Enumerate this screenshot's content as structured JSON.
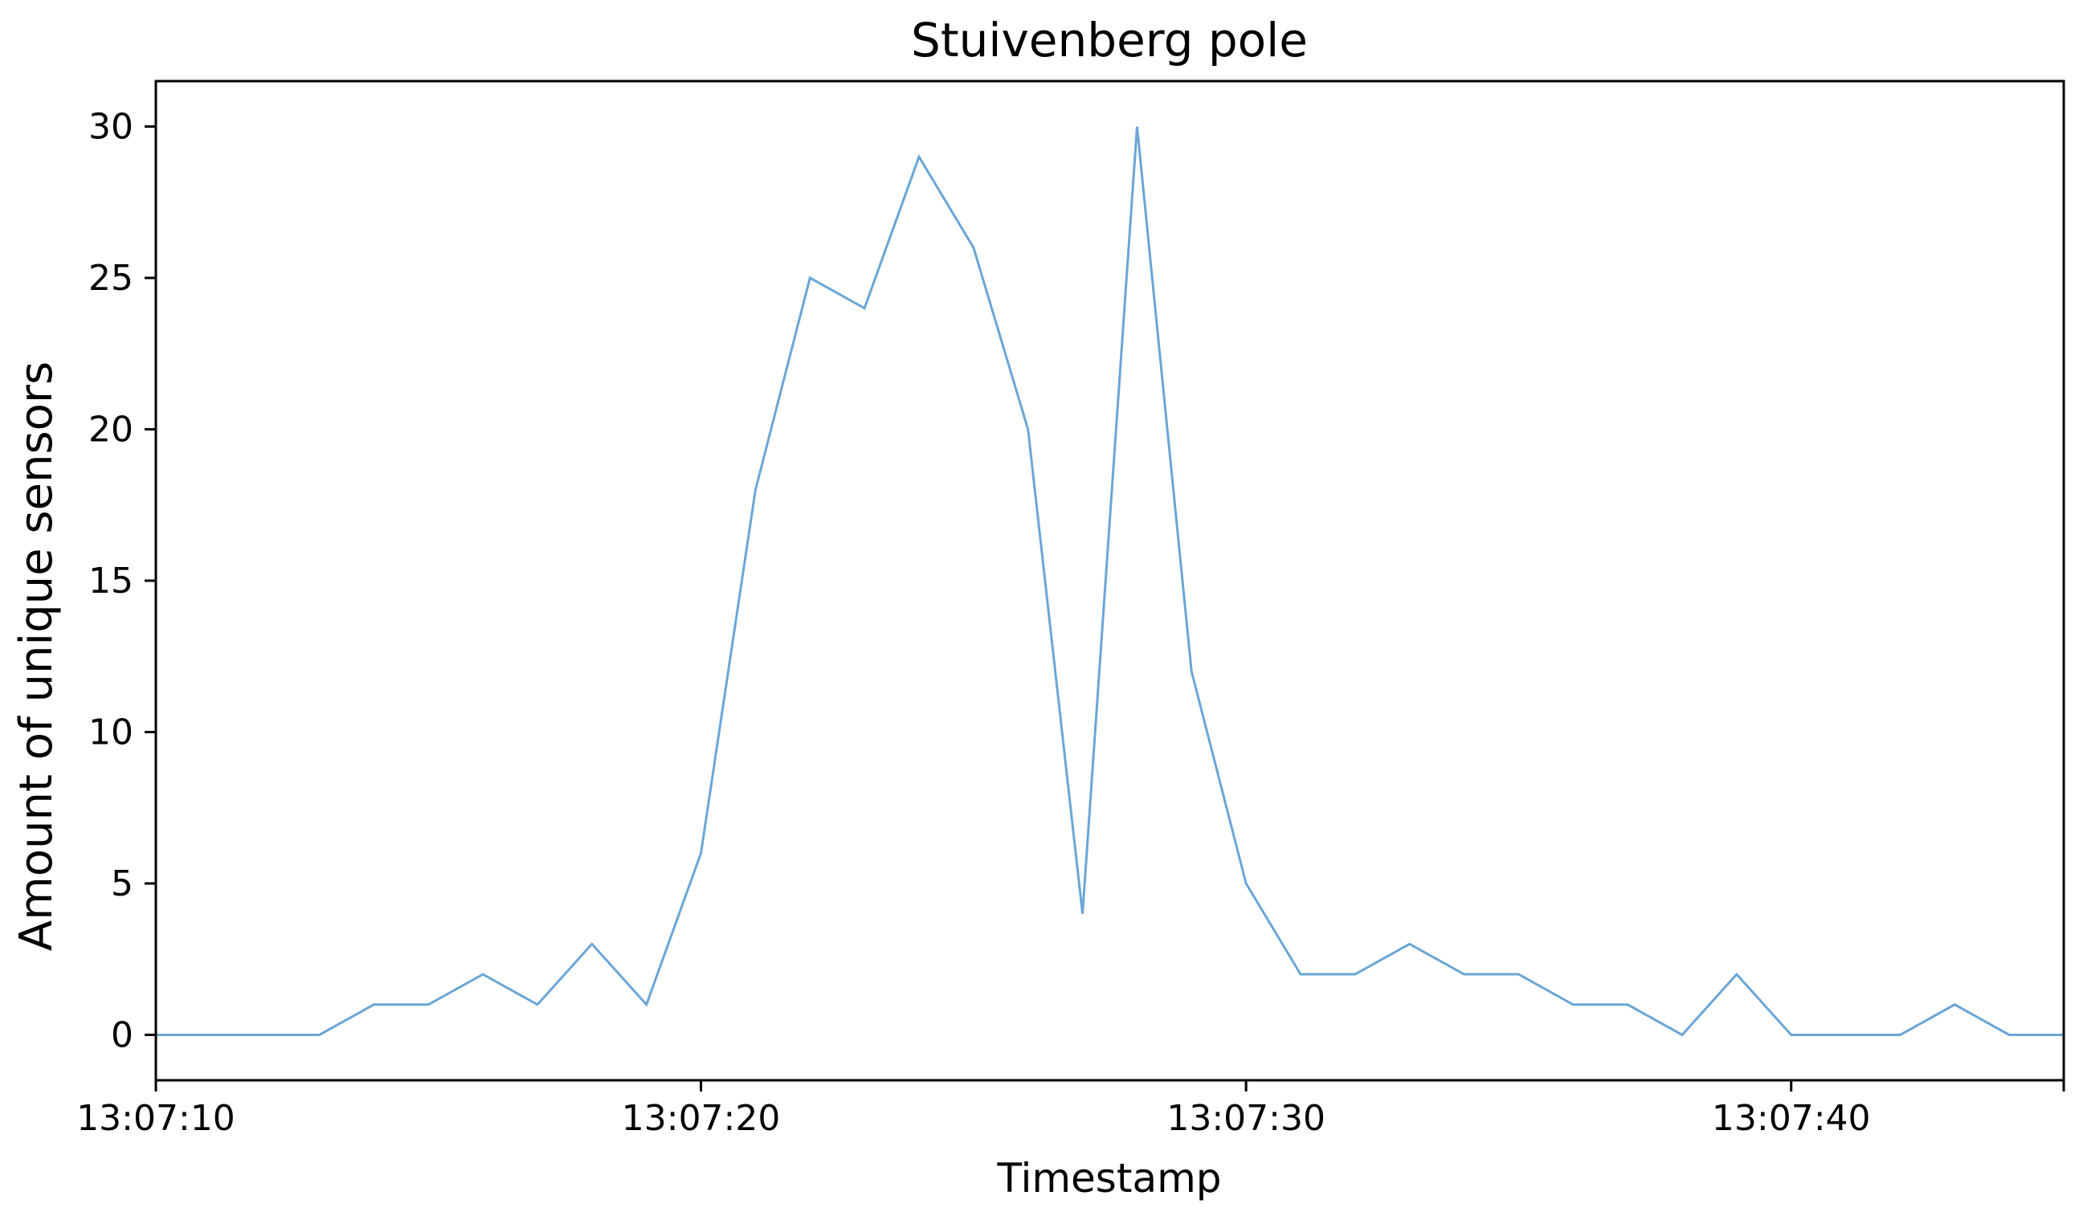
{
  "chart_data": {
    "type": "line",
    "title": "Stuivenberg pole",
    "xlabel": "Timestamp",
    "ylabel": "Amount of unique sensors",
    "x": [
      "13:07:10",
      "13:07:11",
      "13:07:12",
      "13:07:13",
      "13:07:14",
      "13:07:15",
      "13:07:16",
      "13:07:17",
      "13:07:18",
      "13:07:19",
      "13:07:20",
      "13:07:21",
      "13:07:22",
      "13:07:23",
      "13:07:24",
      "13:07:25",
      "13:07:26",
      "13:07:27",
      "13:07:28",
      "13:07:29",
      "13:07:30",
      "13:07:31",
      "13:07:32",
      "13:07:33",
      "13:07:34",
      "13:07:35",
      "13:07:36",
      "13:07:37",
      "13:07:38",
      "13:07:39",
      "13:07:40",
      "13:07:41",
      "13:07:42",
      "13:07:43",
      "13:07:44",
      "13:07:45"
    ],
    "series": [
      {
        "values": [
          0,
          0,
          0,
          0,
          1,
          1,
          2,
          1,
          3,
          1,
          6,
          18,
          25,
          24,
          29,
          26,
          20,
          4,
          30,
          12,
          5,
          2,
          2,
          3,
          2,
          2,
          1,
          1,
          0,
          2,
          0,
          0,
          0,
          1,
          0,
          0
        ],
        "color": "#6aa6d6"
      }
    ],
    "xlim": [
      "13:07:10",
      "13:07:45"
    ],
    "ylim": [
      -1.5,
      31.5
    ],
    "xticks": [
      "13:07:10",
      "13:07:20",
      "13:07:30",
      "13:07:40"
    ],
    "yticks": [
      0,
      5,
      10,
      15,
      20,
      25,
      30
    ],
    "grid": false,
    "legend": "none"
  }
}
